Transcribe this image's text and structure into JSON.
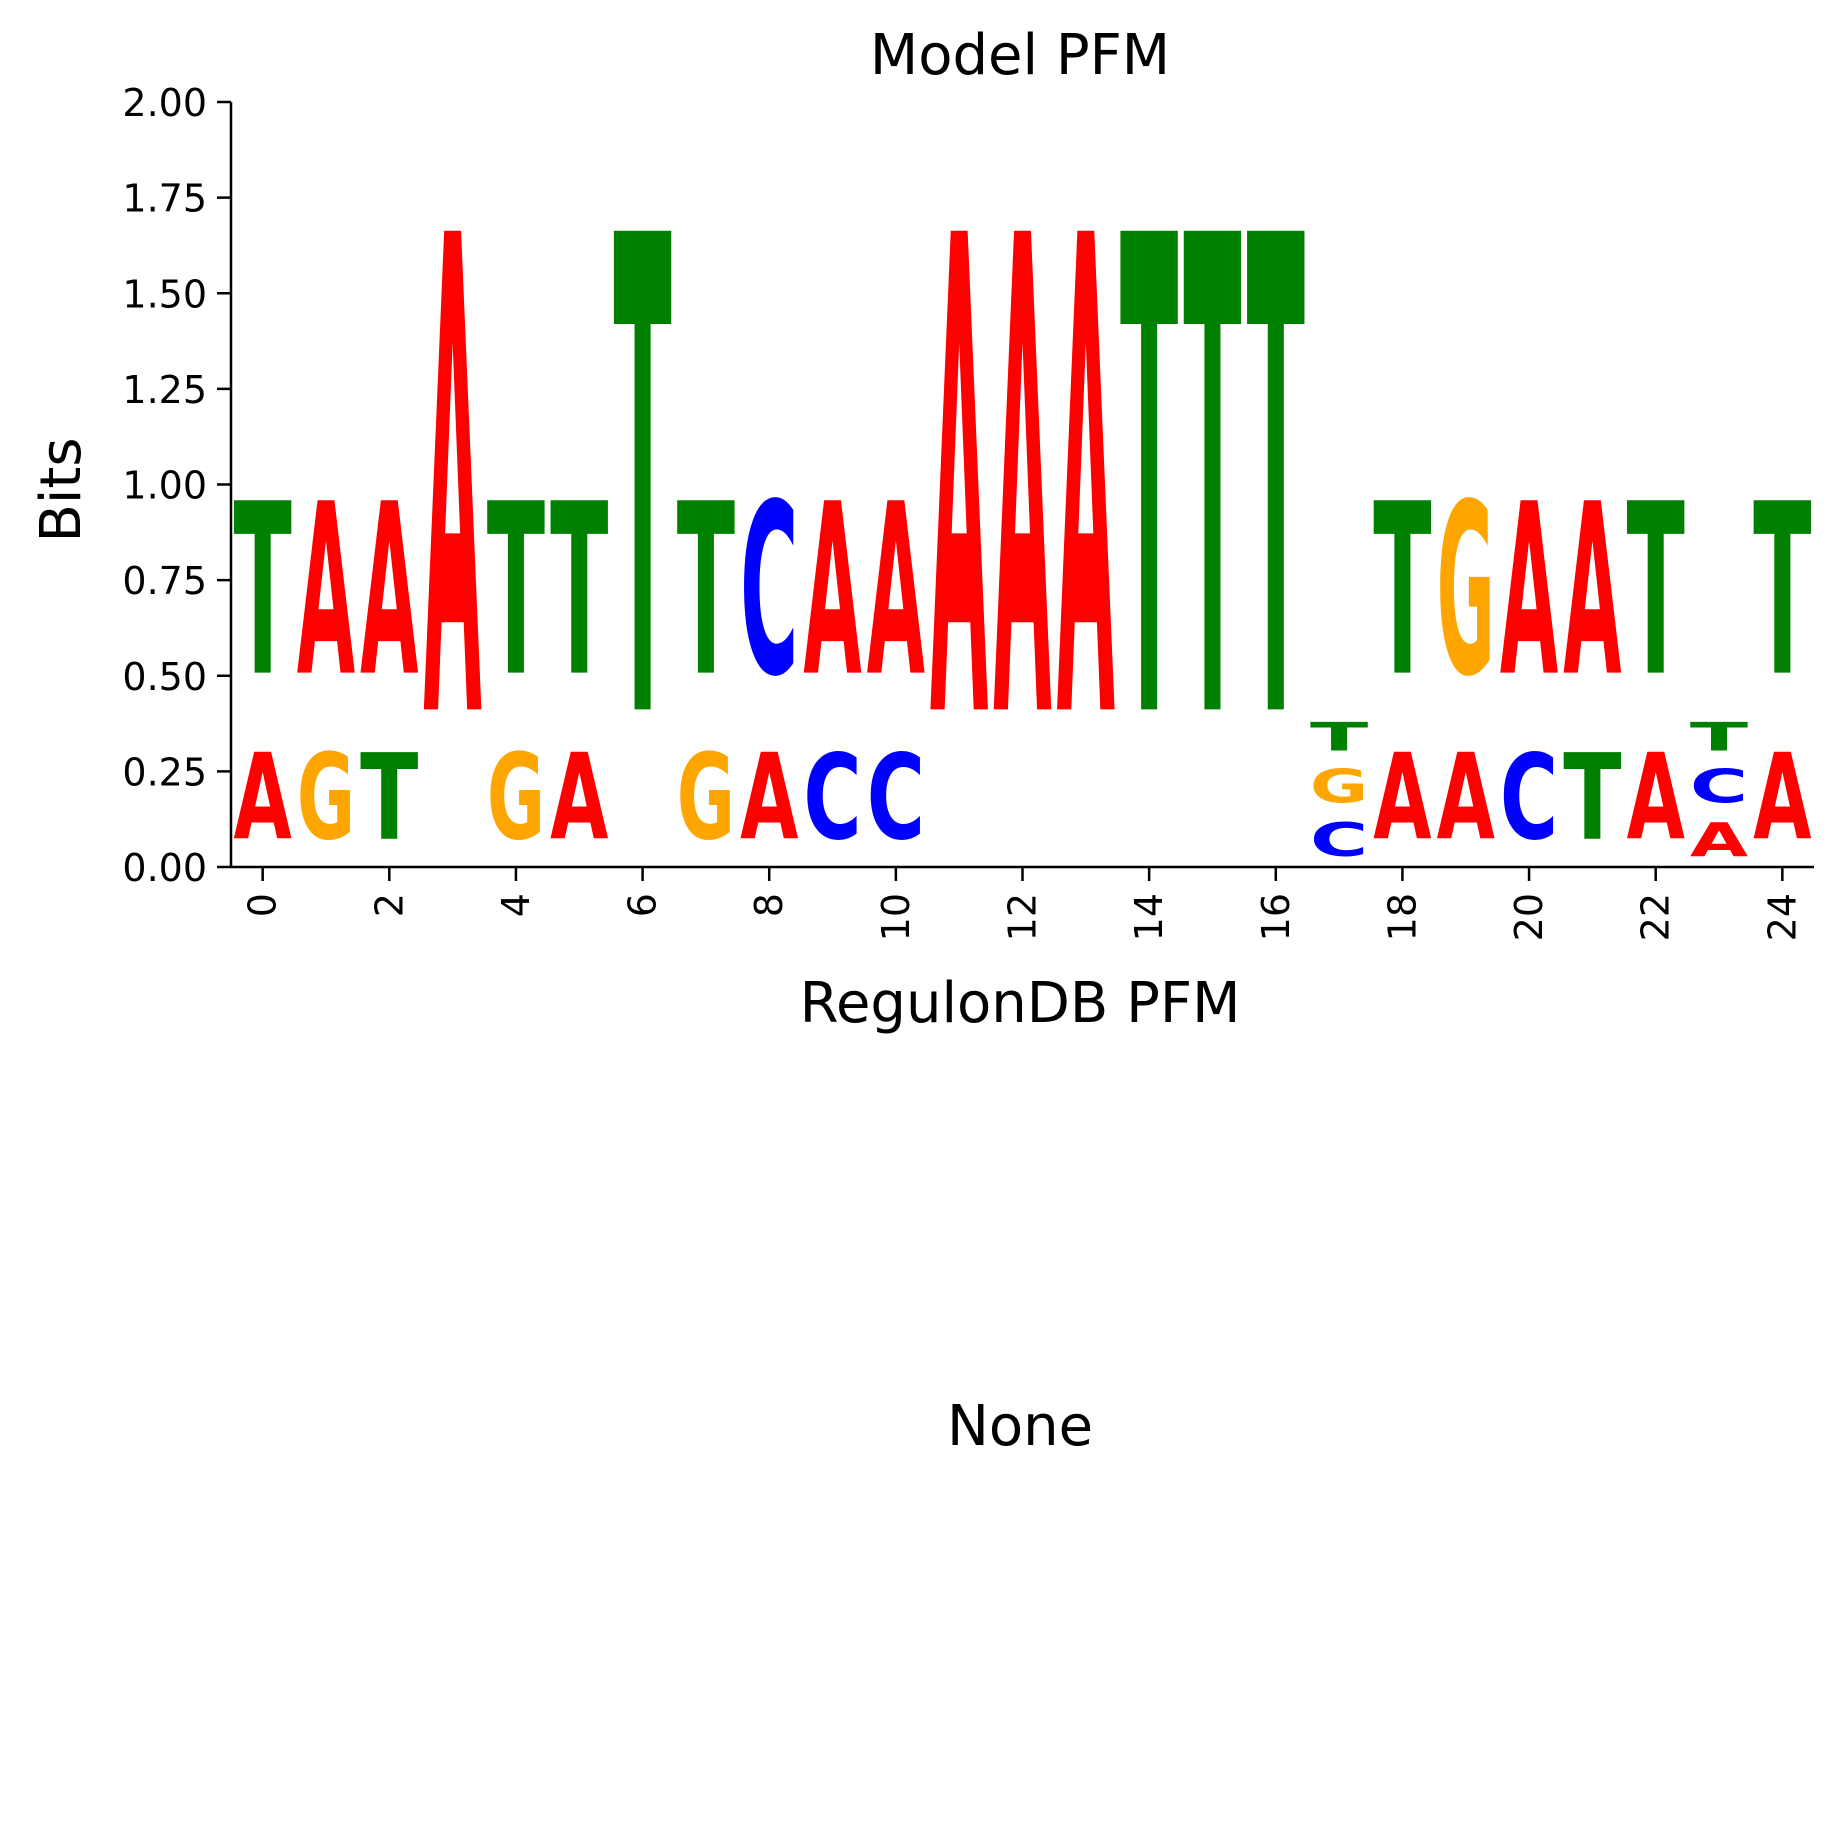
{
  "figure": {
    "title": "Model PFM",
    "lower_title": "None"
  },
  "colors": {
    "A": "#ff0000",
    "C": "#0000ff",
    "G": "#ffa500",
    "T": "#008000"
  },
  "chart_data": {
    "type": "sequence-logo",
    "title": "Model PFM",
    "xlabel": "RegulonDB PFM",
    "ylabel": "Bits",
    "xlim": [
      -0.5,
      24.5
    ],
    "ylim": [
      0,
      2.0
    ],
    "x_ticks": [
      0,
      2,
      4,
      6,
      8,
      10,
      12,
      14,
      16,
      18,
      20,
      22,
      24
    ],
    "x_tick_labels": [
      "0",
      "2",
      "4",
      "6",
      "8",
      "10",
      "12",
      "14",
      "16",
      "18",
      "20",
      "22",
      "24"
    ],
    "y_ticks": [
      0,
      0.25,
      0.5,
      0.75,
      1.0,
      1.25,
      1.5,
      1.75,
      2.0
    ],
    "y_tick_labels": [
      "0.00",
      "0.25",
      "0.50",
      "0.75",
      "1.00",
      "1.25",
      "1.50",
      "1.75",
      "2.00"
    ],
    "grid": false,
    "positions": [
      {
        "pos": 0,
        "stack": [
          {
            "base": "A",
            "bits": 0.36
          },
          {
            "base": "T",
            "bits": 0.72
          }
        ]
      },
      {
        "pos": 1,
        "stack": [
          {
            "base": "G",
            "bits": 0.36
          },
          {
            "base": "A",
            "bits": 0.72
          }
        ]
      },
      {
        "pos": 2,
        "stack": [
          {
            "base": "T",
            "bits": 0.36
          },
          {
            "base": "A",
            "bits": 0.72
          }
        ]
      },
      {
        "pos": 3,
        "stack": [
          {
            "base": "A",
            "bits": 2.0
          }
        ]
      },
      {
        "pos": 4,
        "stack": [
          {
            "base": "G",
            "bits": 0.36
          },
          {
            "base": "T",
            "bits": 0.72
          }
        ]
      },
      {
        "pos": 5,
        "stack": [
          {
            "base": "A",
            "bits": 0.36
          },
          {
            "base": "T",
            "bits": 0.72
          }
        ]
      },
      {
        "pos": 6,
        "stack": [
          {
            "base": "T",
            "bits": 2.0
          }
        ]
      },
      {
        "pos": 7,
        "stack": [
          {
            "base": "G",
            "bits": 0.36
          },
          {
            "base": "T",
            "bits": 0.72
          }
        ]
      },
      {
        "pos": 8,
        "stack": [
          {
            "base": "A",
            "bits": 0.36
          },
          {
            "base": "C",
            "bits": 0.72
          }
        ]
      },
      {
        "pos": 9,
        "stack": [
          {
            "base": "C",
            "bits": 0.36
          },
          {
            "base": "A",
            "bits": 0.72
          }
        ]
      },
      {
        "pos": 10,
        "stack": [
          {
            "base": "C",
            "bits": 0.36
          },
          {
            "base": "A",
            "bits": 0.72
          }
        ]
      },
      {
        "pos": 11,
        "stack": [
          {
            "base": "A",
            "bits": 2.0
          }
        ]
      },
      {
        "pos": 12,
        "stack": [
          {
            "base": "A",
            "bits": 2.0
          }
        ]
      },
      {
        "pos": 13,
        "stack": [
          {
            "base": "A",
            "bits": 2.0
          }
        ]
      },
      {
        "pos": 14,
        "stack": [
          {
            "base": "T",
            "bits": 2.0
          }
        ]
      },
      {
        "pos": 15,
        "stack": [
          {
            "base": "T",
            "bits": 2.0
          }
        ]
      },
      {
        "pos": 16,
        "stack": [
          {
            "base": "T",
            "bits": 2.0
          }
        ]
      },
      {
        "pos": 17,
        "stack": [
          {
            "base": "C",
            "bits": 0.14
          },
          {
            "base": "G",
            "bits": 0.14
          },
          {
            "base": "T",
            "bits": 0.12
          }
        ]
      },
      {
        "pos": 18,
        "stack": [
          {
            "base": "A",
            "bits": 0.36
          },
          {
            "base": "T",
            "bits": 0.72
          }
        ]
      },
      {
        "pos": 19,
        "stack": [
          {
            "base": "A",
            "bits": 0.36
          },
          {
            "base": "G",
            "bits": 0.72
          }
        ]
      },
      {
        "pos": 20,
        "stack": [
          {
            "base": "C",
            "bits": 0.36
          },
          {
            "base": "A",
            "bits": 0.72
          }
        ]
      },
      {
        "pos": 21,
        "stack": [
          {
            "base": "T",
            "bits": 0.36
          },
          {
            "base": "A",
            "bits": 0.72
          }
        ]
      },
      {
        "pos": 22,
        "stack": [
          {
            "base": "A",
            "bits": 0.36
          },
          {
            "base": "T",
            "bits": 0.72
          }
        ]
      },
      {
        "pos": 23,
        "stack": [
          {
            "base": "A",
            "bits": 0.14
          },
          {
            "base": "C",
            "bits": 0.14
          },
          {
            "base": "T",
            "bits": 0.12
          }
        ]
      },
      {
        "pos": 24,
        "stack": [
          {
            "base": "A",
            "bits": 0.36
          },
          {
            "base": "T",
            "bits": 0.72
          }
        ]
      }
    ]
  }
}
